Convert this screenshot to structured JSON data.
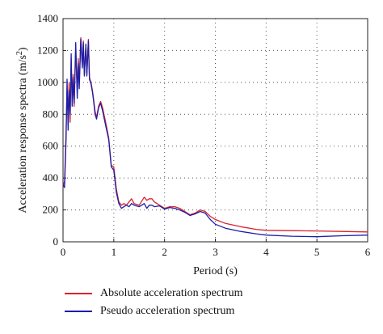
{
  "chart_data": {
    "type": "line",
    "title": "",
    "xlabel": "Period (s)",
    "ylabel_prefix": "Acceleration response spectra (m/s",
    "ylabel_sup": "2",
    "ylabel_suffix": ")",
    "xlim": [
      0,
      6
    ],
    "ylim": [
      0,
      1400
    ],
    "xticks": [
      0,
      1,
      2,
      3,
      4,
      5,
      6
    ],
    "yticks": [
      0,
      200,
      400,
      600,
      800,
      1000,
      1200,
      1400
    ],
    "grid": true,
    "legend_position": "bottom",
    "series": [
      {
        "name": "Absolute acceleration spectrum",
        "color": "#d9232e",
        "x": [
          0.0,
          0.03,
          0.06,
          0.08,
          0.1,
          0.12,
          0.14,
          0.16,
          0.18,
          0.2,
          0.22,
          0.25,
          0.28,
          0.3,
          0.32,
          0.35,
          0.38,
          0.4,
          0.42,
          0.45,
          0.47,
          0.5,
          0.52,
          0.55,
          0.58,
          0.6,
          0.63,
          0.66,
          0.7,
          0.74,
          0.78,
          0.82,
          0.86,
          0.9,
          0.95,
          1.0,
          1.05,
          1.1,
          1.15,
          1.2,
          1.25,
          1.3,
          1.35,
          1.4,
          1.5,
          1.6,
          1.65,
          1.7,
          1.75,
          1.8,
          1.9,
          2.0,
          2.1,
          2.2,
          2.3,
          2.4,
          2.5,
          2.6,
          2.7,
          2.8,
          2.9,
          3.0,
          3.2,
          3.5,
          3.8,
          4.0,
          4.5,
          5.0,
          5.5,
          6.0
        ],
        "values": [
          350,
          380,
          700,
          950,
          820,
          1000,
          750,
          1150,
          900,
          1050,
          850,
          1200,
          950,
          1150,
          1000,
          1280,
          1100,
          1260,
          1050,
          1230,
          1050,
          1270,
          1030,
          1000,
          950,
          900,
          820,
          780,
          850,
          880,
          840,
          780,
          720,
          650,
          480,
          470,
          330,
          250,
          230,
          240,
          230,
          250,
          270,
          240,
          230,
          280,
          260,
          270,
          270,
          250,
          230,
          210,
          220,
          220,
          210,
          190,
          170,
          180,
          200,
          190,
          160,
          140,
          115,
          95,
          78,
          72,
          70,
          68,
          65,
          62
        ]
      },
      {
        "name": "Pseudo acceleration spectrum",
        "color": "#1c1ea8",
        "x": [
          0.0,
          0.03,
          0.06,
          0.08,
          0.1,
          0.12,
          0.14,
          0.16,
          0.18,
          0.2,
          0.22,
          0.25,
          0.28,
          0.3,
          0.32,
          0.35,
          0.38,
          0.4,
          0.42,
          0.45,
          0.47,
          0.5,
          0.52,
          0.55,
          0.58,
          0.6,
          0.63,
          0.66,
          0.7,
          0.74,
          0.78,
          0.82,
          0.86,
          0.9,
          0.95,
          1.0,
          1.05,
          1.1,
          1.15,
          1.2,
          1.25,
          1.3,
          1.35,
          1.4,
          1.5,
          1.6,
          1.65,
          1.7,
          1.75,
          1.8,
          1.9,
          2.0,
          2.1,
          2.2,
          2.3,
          2.4,
          2.5,
          2.6,
          2.7,
          2.8,
          2.9,
          3.0,
          3.2,
          3.5,
          3.8,
          4.0,
          4.5,
          5.0,
          5.5,
          6.0
        ],
        "values": [
          360,
          340,
          650,
          1020,
          700,
          950,
          800,
          1180,
          850,
          1030,
          870,
          1250,
          900,
          1120,
          960,
          1270,
          1090,
          1250,
          1040,
          1240,
          1040,
          1260,
          1020,
          990,
          940,
          890,
          800,
          770,
          840,
          870,
          820,
          760,
          700,
          640,
          470,
          450,
          310,
          240,
          210,
          220,
          230,
          220,
          240,
          230,
          220,
          240,
          210,
          230,
          230,
          220,
          225,
          205,
          215,
          210,
          200,
          185,
          165,
          175,
          190,
          180,
          140,
          110,
          85,
          65,
          50,
          42,
          35,
          32,
          38,
          42
        ]
      }
    ]
  }
}
